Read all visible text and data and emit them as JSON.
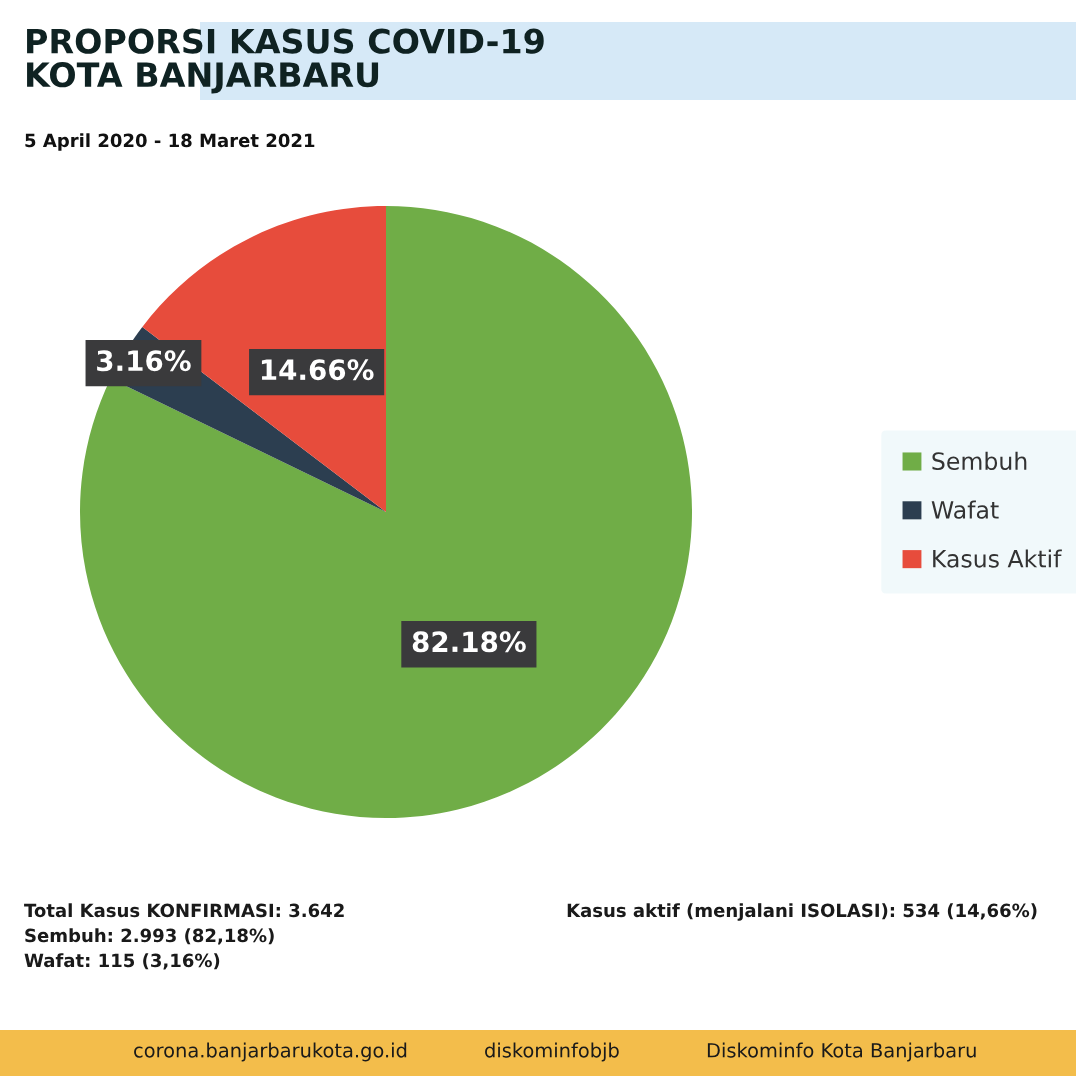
{
  "chart_data": {
    "type": "pie",
    "title": "PROPORSI KASUS COVID-19\nKOTA BANJARBARU",
    "subtitle": "5 April 2020 - 18 Maret 2021",
    "categories": [
      "Sembuh",
      "Wafat",
      "Kasus Aktif"
    ],
    "values": [
      82.18,
      3.16,
      14.66
    ],
    "colors": [
      "#70ad47",
      "#2c3e50",
      "#e74c3c"
    ],
    "value_labels": [
      "82.18%",
      "3.16%",
      "14.66%"
    ],
    "legend": "right",
    "annotations": [
      "Total Kasus KONFIRMASI: 3.642",
      "Sembuh: 2.993 (82,18%)",
      "Wafat: 115 (3,16%)",
      "Kasus aktif (menjalani ISOLASI): 534 (14,66%)",
      "corona.banjarbarukota.go.id",
      "diskominfobjb",
      "Diskominfo Kota Banjarbaru"
    ]
  }
}
